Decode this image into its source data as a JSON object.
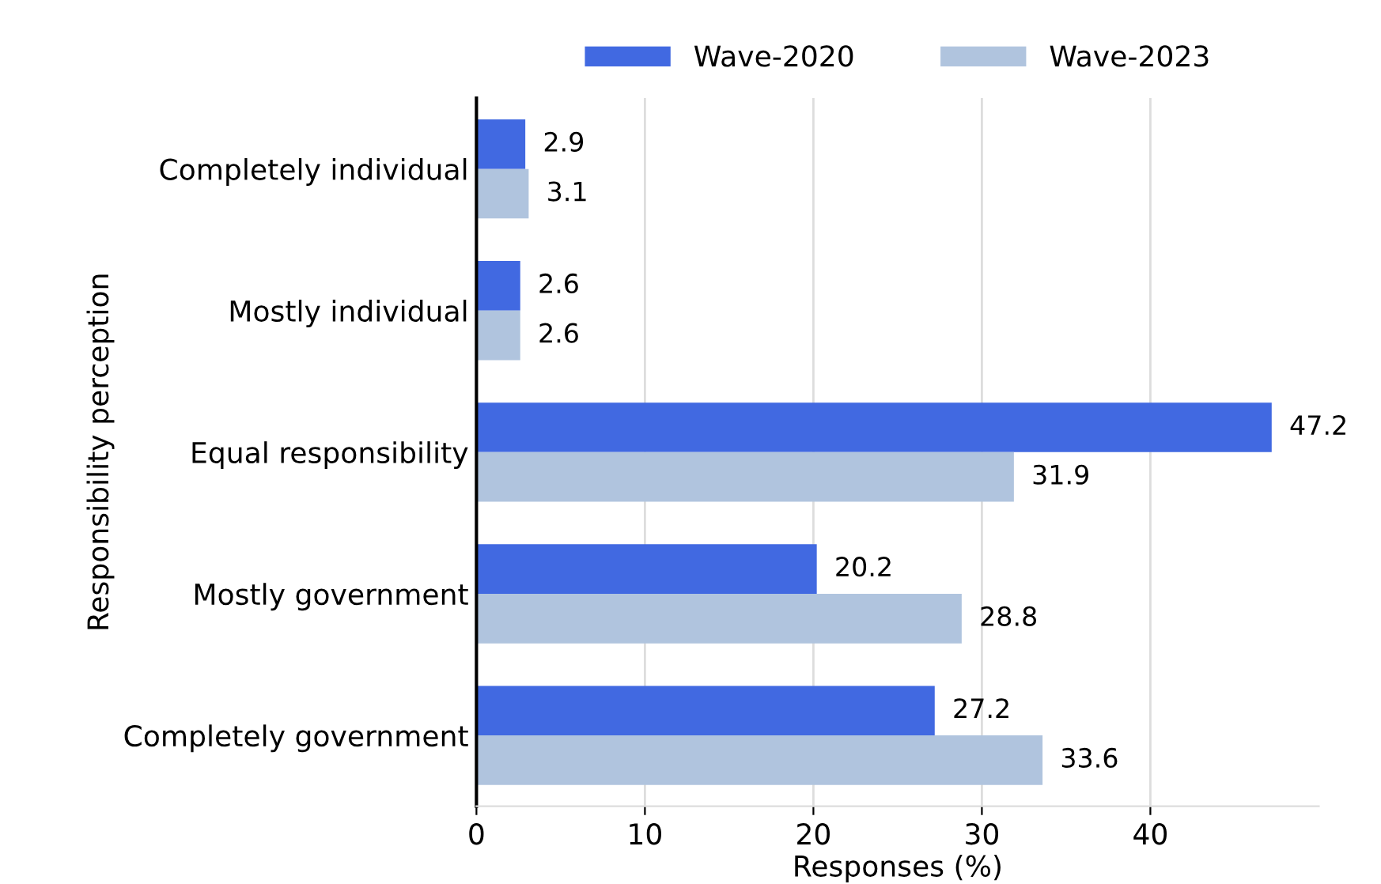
{
  "chart_data": {
    "type": "bar",
    "orientation": "horizontal",
    "xlabel": "Responses (%)",
    "ylabel": "Responsibility perception",
    "categories": [
      "Completely individual",
      "Mostly individual",
      "Equal responsibility",
      "Mostly government",
      "Completely government"
    ],
    "series": [
      {
        "name": "Wave-2020",
        "color": "#4169e1",
        "values": [
          2.9,
          2.6,
          47.2,
          20.2,
          27.2
        ]
      },
      {
        "name": "Wave-2023",
        "color": "#b0c4de",
        "values": [
          3.1,
          2.6,
          31.9,
          28.8,
          33.6
        ]
      }
    ],
    "xlim": [
      0,
      50
    ],
    "xticks": [
      0,
      10,
      20,
      30,
      40
    ],
    "grid": "x",
    "legend": "top",
    "data_labels": true
  }
}
